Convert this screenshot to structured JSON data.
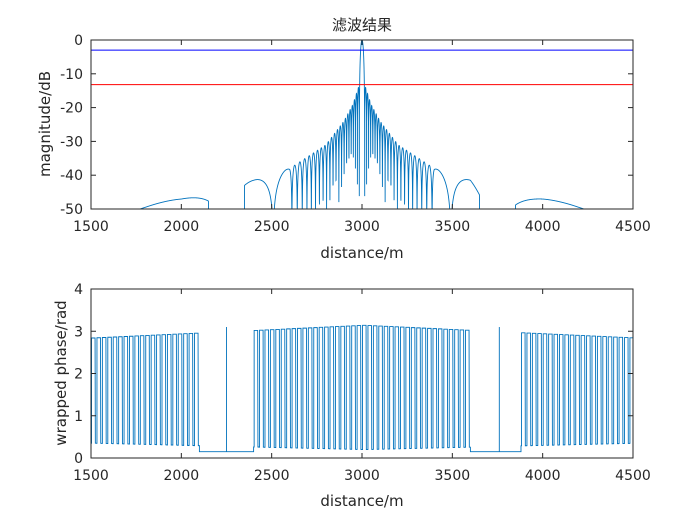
{
  "chart_data": [
    {
      "type": "line",
      "title": "滤波结果",
      "xlabel": "distance/m",
      "ylabel": "magnitude/dB",
      "xlim": [
        1500,
        4500
      ],
      "ylim": [
        -50,
        0
      ],
      "xticks": [
        "1500",
        "2000",
        "2500",
        "3000",
        "3500",
        "4000",
        "4500"
      ],
      "yticks": [
        "0",
        "-10",
        "-20",
        "-30",
        "-40",
        "-50"
      ],
      "grid": false,
      "reference_lines": [
        {
          "y": -3,
          "color": "#0000ff"
        },
        {
          "y": -13.2,
          "color": "#ff0000"
        }
      ],
      "series": [
        {
          "color": "#0072bd",
          "description_points": {
            "peak": {
              "x": 3000,
              "y": 0
            },
            "first_sidelobes": {
              "x": [
                2985,
                3015
              ],
              "y": -13.2
            },
            "sidelobe_envelope": [
              {
                "x": 1600,
                "y": -49.5
              },
              {
                "x": 1800,
                "y": -48.5
              },
              {
                "x": 2000,
                "y": -47
              },
              {
                "x": 2150,
                "y": -45
              },
              {
                "x": 2400,
                "y": -41.5
              },
              {
                "x": 2600,
                "y": -38
              },
              {
                "x": 2800,
                "y": -31
              },
              {
                "x": 2900,
                "y": -24
              },
              {
                "x": 2950,
                "y": -19
              },
              {
                "x": 2985,
                "y": -13.2
              },
              {
                "x": 3015,
                "y": -13.2
              },
              {
                "x": 3050,
                "y": -19
              },
              {
                "x": 3100,
                "y": -24
              },
              {
                "x": 3200,
                "y": -31
              },
              {
                "x": 3400,
                "y": -38
              },
              {
                "x": 3600,
                "y": -41.5
              },
              {
                "x": 3650,
                "y": -45
              },
              {
                "x": 4000,
                "y": -47
              },
              {
                "x": 4200,
                "y": -48.5
              },
              {
                "x": 4400,
                "y": -49.5
              }
            ],
            "gaps_below_range": [
              [
                2150,
                2350
              ],
              [
                3650,
                3850
              ]
            ]
          }
        }
      ]
    },
    {
      "type": "line",
      "title": "",
      "xlabel": "distance/m",
      "ylabel": "wrapped phase/rad",
      "xlim": [
        1500,
        4500
      ],
      "ylim": [
        0,
        4
      ],
      "xticks": [
        "1500",
        "2000",
        "2500",
        "3000",
        "3500",
        "4000",
        "4500"
      ],
      "yticks": [
        "0",
        "1",
        "2",
        "3",
        "4"
      ],
      "grid": false,
      "series": [
        {
          "color": "#0072bd",
          "description_points": {
            "low_level_range": [
              0.2,
              0.35
            ],
            "high_level_range": [
              2.8,
              3.14
            ],
            "square_wave_period_m": 30,
            "flat_segments": [
              {
                "x": [
                  2100,
                  2400
                ],
                "y": 0.15
              },
              {
                "x": [
                  3600,
                  3880
                ],
                "y": 0.15
              }
            ],
            "spikes": [
              {
                "x": 2250,
                "y": 3.1
              },
              {
                "x": 3760,
                "y": 3.1
              }
            ]
          }
        }
      ]
    }
  ]
}
